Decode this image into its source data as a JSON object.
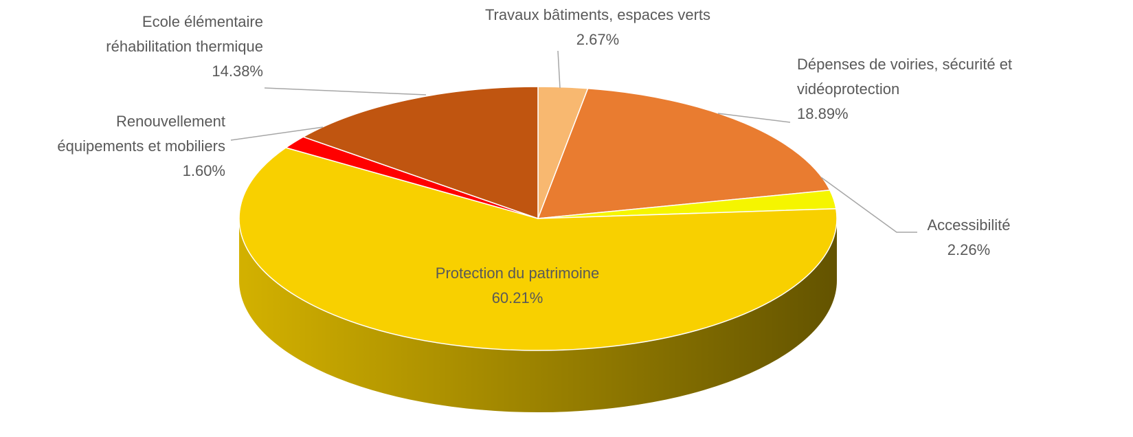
{
  "chart_data": {
    "type": "pie",
    "categories": [
      "Travaux bâtiments, espaces verts",
      "Dépenses de voiries, sécurité et\nvidéoprotection",
      "Accessibilité",
      "Protection du patrimoine",
      "Renouvellement\néquipements et mobiliers",
      "Ecole élémentaire\nréhabilitation thermique"
    ],
    "values": [
      2.67,
      18.89,
      2.26,
      60.21,
      1.6,
      14.38
    ],
    "value_labels": [
      "2.67%",
      "18.89%",
      "2.26%",
      "60.21%",
      "1.60%",
      "14.38%"
    ],
    "colors": [
      "#f8b870",
      "#e97c30",
      "#f5f500",
      "#f8d000",
      "#ff0000",
      "#c05510"
    ]
  }
}
